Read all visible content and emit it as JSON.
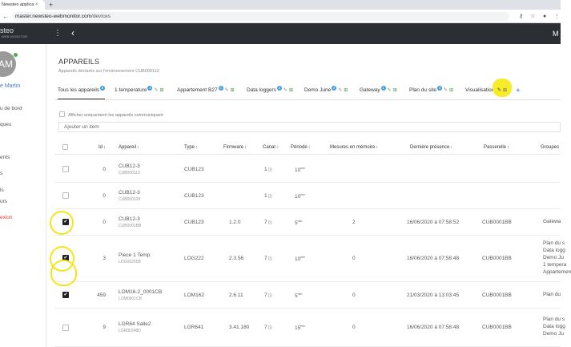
{
  "browser": {
    "tab_title": "Newsteo applica",
    "tab_close": "×",
    "new_tab": "+",
    "url_host": "master.newsteo-webmonitor.com",
    "url_path": "/devices",
    "back": "←",
    "key_icon": "⚷",
    "star_icon": "☆",
    "menu_icon": "⋮"
  },
  "header": {
    "logo": "steo",
    "logo_sub": "WEB MONITOR",
    "kebab": "⋮",
    "back": "‹",
    "right_label": "M"
  },
  "sidebar": {
    "avatar_initials": "AM",
    "user_name": "e Martin",
    "items": [
      "u de bord",
      "ques",
      "ents",
      "s",
      "ls",
      "urs",
      "exion"
    ]
  },
  "page": {
    "title": "APPAREILS",
    "subtitle": "Appareils déclarés sur l'environnement CUB000113"
  },
  "tabs": [
    {
      "label": "Tous les appareils",
      "badge": "6"
    },
    {
      "label": "1 temperature",
      "badge": "1"
    },
    {
      "label": "Appartement B27",
      "badge": "2"
    },
    {
      "label": "Data loggers",
      "badge": "3"
    },
    {
      "label": "Demo June",
      "badge": "2"
    },
    {
      "label": "Gateway",
      "badge": "1"
    },
    {
      "label": "Plan du site",
      "badge": "3"
    },
    {
      "label": "Visualisation",
      "badge": ""
    }
  ],
  "tab_add": "+",
  "filter": {
    "only_communicating_label": "Afficher uniquement les appareils communiquant",
    "add_item_placeholder": "Ajouter un item"
  },
  "table": {
    "columns": {
      "id": "Id",
      "device": "Appareil",
      "type": "Type",
      "firmware": "Firmware",
      "channel": "Canal",
      "period": "Période",
      "memory": "Mesures en mémoire",
      "last_seen": "Dernière présence",
      "gateway": "Passerelle",
      "groups": "Groupes"
    },
    "sort_glyph": "↕",
    "rows": [
      {
        "id": "0",
        "name": "CUB12-3",
        "serial": "CUB000113",
        "type": "CUB123",
        "firmware": "",
        "channel": "1",
        "period": "10",
        "period_unit": "min",
        "memory": "",
        "last_seen": "",
        "gateway": "",
        "groups": [],
        "checked": false
      },
      {
        "id": "0",
        "name": "CUB12-3",
        "serial": "CUB000109",
        "type": "CUB123",
        "firmware": "",
        "channel": "1",
        "period": "10",
        "period_unit": "min",
        "memory": "",
        "last_seen": "",
        "gateway": "",
        "groups": [],
        "checked": false
      },
      {
        "id": "0",
        "name": "CUB12-3",
        "serial": "CUB0001BB",
        "type": "CUB123",
        "firmware": "1.2.0",
        "channel": "7",
        "period": "5",
        "period_unit": "min",
        "memory": "2",
        "last_seen": "16/06/2020 à 07:58:52",
        "gateway": "CUB0001BB",
        "groups": [
          "Gatewa"
        ],
        "checked": true
      },
      {
        "id": "3",
        "name": "Piece 1 Temp.",
        "serial": "LOG00255B",
        "type": "LOG222",
        "firmware": "2.3.56",
        "channel": "7",
        "period": "10",
        "period_unit": "min",
        "memory": "0",
        "last_seen": "16/06/2020 à 07:58:48",
        "gateway": "CUB0001BB",
        "groups": [
          "Plan du s",
          "Data logg",
          "Demo Ju",
          "1 tempera",
          "Appartemen"
        ],
        "checked": true
      },
      {
        "id": "459",
        "name": "LOM16-2_0001CB",
        "serial": "LOM0001CB",
        "type": "LOM162",
        "firmware": "2.6.11",
        "channel": "7",
        "period": "5",
        "period_unit": "min",
        "memory": "0",
        "last_seen": "21/03/2020 à 13:03:45",
        "gateway": "CUB0001BB",
        "groups": [
          "Plan du"
        ],
        "checked": true
      },
      {
        "id": "9",
        "name": "LGR64 Salle2",
        "serial": "LGR00248D",
        "type": "LGR641",
        "firmware": "3.41.180",
        "channel": "7",
        "period": "15",
        "period_unit": "min",
        "memory": "0",
        "last_seen": "16/06/2020 à 07:58:48",
        "gateway": "CUB0001BB",
        "groups": [
          "Plan du s",
          "Data logg",
          "Demo Ju"
        ],
        "checked": false
      }
    ]
  },
  "colors": {
    "header_bg": "#2b2f33",
    "badge": "#3b9ddd",
    "highlight": "#f5e51a",
    "logout": "#e53935"
  }
}
